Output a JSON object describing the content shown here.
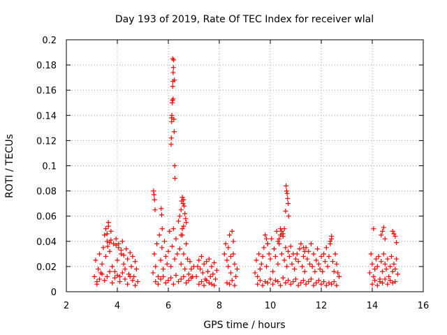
{
  "chart_data": {
    "type": "scatter",
    "title": "Day 193 of 2019, Rate Of TEC Index for receiver wlal",
    "xlabel": "GPS time / hours",
    "ylabel": "ROTI / TECUs",
    "xlim": [
      2,
      16
    ],
    "ylim": [
      0,
      0.2
    ],
    "xticks": [
      2,
      4,
      6,
      8,
      10,
      12,
      14,
      16
    ],
    "xtick_labels": [
      "2",
      "4",
      "6",
      "8",
      "10",
      "12",
      "14",
      "16"
    ],
    "yticks": [
      0,
      0.02,
      0.04,
      0.06,
      0.08,
      0.1,
      0.12,
      0.14,
      0.16,
      0.18,
      0.2
    ],
    "ytick_labels": [
      "0",
      "0.02",
      "0.04",
      "0.06",
      "0.08",
      "0.1",
      "0.12",
      "0.14",
      "0.16",
      "0.18",
      "0.2"
    ],
    "grid": true,
    "marker": "plus",
    "color": "#ff0000",
    "series": [
      {
        "name": "ROTI",
        "x": [
          3.1,
          3.15,
          3.2,
          3.25,
          3.3,
          3.35,
          3.4,
          3.45,
          3.5,
          3.55,
          3.6,
          3.65,
          3.7,
          3.75,
          3.8,
          3.85,
          3.9,
          3.95,
          4.0,
          4.05,
          4.1,
          4.15,
          4.2,
          4.25,
          4.3,
          4.35,
          4.4,
          4.45,
          4.5,
          4.55,
          4.6,
          4.65,
          4.7,
          4.75,
          4.8,
          3.2,
          3.3,
          3.4,
          3.5,
          3.6,
          3.7,
          3.8,
          3.9,
          4.0,
          4.1,
          4.2,
          4.3,
          4.4,
          4.5,
          4.6,
          4.7,
          3.55,
          3.6,
          3.65,
          3.7,
          3.75,
          3.62,
          4.05,
          4.15,
          4.25,
          3.95,
          5.4,
          5.45,
          5.5,
          5.55,
          5.6,
          5.65,
          5.7,
          5.75,
          5.8,
          5.85,
          5.9,
          5.95,
          6.0,
          6.05,
          6.1,
          6.15,
          6.2,
          6.25,
          6.3,
          6.35,
          6.4,
          6.45,
          6.5,
          6.55,
          6.6,
          6.65,
          6.7,
          6.75,
          6.8,
          6.85,
          6.9,
          6.95,
          7.0,
          5.5,
          5.6,
          5.7,
          5.8,
          5.9,
          6.0,
          6.1,
          6.2,
          6.3,
          6.4,
          6.5,
          6.6,
          6.7,
          6.8,
          6.9,
          5.42,
          5.44,
          5.46,
          5.48,
          5.72,
          5.74,
          5.76,
          6.12,
          6.13,
          6.14,
          6.15,
          6.16,
          6.17,
          6.18,
          6.19,
          6.2,
          6.21,
          6.22,
          6.23,
          6.24,
          6.25,
          6.26,
          6.11,
          6.17,
          6.13,
          6.19,
          6.45,
          6.5,
          6.52,
          6.55,
          6.58,
          6.6,
          6.62,
          6.65,
          6.68,
          6.7,
          6.5,
          6.55,
          6.6,
          7.1,
          7.15,
          7.2,
          7.25,
          7.3,
          7.35,
          7.4,
          7.45,
          7.5,
          7.55,
          7.6,
          7.65,
          7.7,
          7.75,
          7.8,
          7.85,
          7.9,
          7.2,
          7.3,
          7.4,
          7.5,
          7.6,
          7.7,
          7.8,
          8.2,
          8.25,
          8.3,
          8.35,
          8.4,
          8.45,
          8.5,
          8.55,
          8.6,
          8.65,
          8.7,
          8.3,
          8.4,
          8.5,
          8.6,
          8.35,
          8.45,
          8.55,
          9.4,
          9.45,
          9.5,
          9.55,
          9.6,
          9.65,
          9.7,
          9.75,
          9.8,
          9.85,
          9.9,
          9.95,
          10.0,
          10.05,
          10.1,
          10.15,
          10.2,
          10.25,
          10.3,
          10.35,
          10.4,
          10.45,
          10.5,
          10.55,
          10.6,
          10.65,
          10.7,
          10.75,
          10.8,
          10.85,
          10.9,
          10.95,
          11.0,
          11.05,
          11.1,
          11.15,
          11.2,
          11.25,
          11.3,
          11.35,
          11.4,
          11.45,
          11.5,
          11.55,
          11.6,
          11.65,
          11.7,
          11.75,
          11.8,
          11.85,
          11.9,
          11.95,
          12.0,
          12.05,
          12.1,
          12.15,
          12.2,
          12.25,
          12.3,
          12.35,
          12.4,
          12.45,
          12.5,
          12.55,
          12.6,
          12.65,
          12.7,
          9.5,
          9.6,
          9.7,
          9.8,
          9.9,
          10.0,
          10.1,
          10.2,
          10.3,
          10.4,
          10.5,
          10.6,
          10.7,
          10.8,
          10.9,
          11.0,
          11.1,
          11.2,
          11.3,
          11.4,
          11.5,
          11.6,
          11.7,
          11.8,
          11.9,
          12.0,
          12.1,
          12.2,
          12.3,
          12.4,
          12.5,
          12.6,
          10.3,
          10.35,
          10.4,
          10.45,
          10.5,
          10.55,
          10.62,
          10.64,
          10.66,
          10.68,
          10.7,
          10.72,
          10.6,
          9.85,
          9.9,
          11.3,
          11.35,
          12.35,
          12.4,
          13.9,
          13.95,
          14.0,
          14.05,
          14.1,
          14.15,
          14.2,
          14.25,
          14.3,
          14.35,
          14.4,
          14.45,
          14.5,
          14.55,
          14.6,
          14.65,
          14.7,
          14.75,
          14.8,
          14.85,
          14.9,
          14.95,
          15.0,
          14.0,
          14.1,
          14.2,
          14.3,
          14.4,
          14.5,
          14.6,
          14.7,
          14.8,
          14.9,
          14.05,
          14.35,
          14.4,
          14.45,
          14.5,
          14.8,
          14.85,
          14.9,
          14.95
        ],
        "y": [
          0.012,
          0.025,
          0.008,
          0.018,
          0.03,
          0.015,
          0.022,
          0.035,
          0.045,
          0.028,
          0.04,
          0.055,
          0.032,
          0.048,
          0.02,
          0.038,
          0.016,
          0.042,
          0.025,
          0.035,
          0.012,
          0.03,
          0.04,
          0.022,
          0.018,
          0.034,
          0.026,
          0.014,
          0.031,
          0.02,
          0.028,
          0.012,
          0.024,
          0.018,
          0.008,
          0.006,
          0.01,
          0.014,
          0.009,
          0.012,
          0.016,
          0.007,
          0.011,
          0.013,
          0.008,
          0.015,
          0.01,
          0.006,
          0.012,
          0.009,
          0.005,
          0.05,
          0.046,
          0.052,
          0.039,
          0.041,
          0.036,
          0.038,
          0.033,
          0.029,
          0.037,
          0.015,
          0.03,
          0.02,
          0.038,
          0.012,
          0.045,
          0.025,
          0.035,
          0.018,
          0.04,
          0.028,
          0.022,
          0.032,
          0.048,
          0.02,
          0.036,
          0.05,
          0.026,
          0.042,
          0.03,
          0.056,
          0.034,
          0.022,
          0.045,
          0.03,
          0.018,
          0.038,
          0.026,
          0.014,
          0.024,
          0.018,
          0.012,
          0.02,
          0.008,
          0.006,
          0.01,
          0.012,
          0.007,
          0.009,
          0.011,
          0.006,
          0.013,
          0.008,
          0.01,
          0.012,
          0.007,
          0.009,
          0.011,
          0.08,
          0.077,
          0.073,
          0.065,
          0.066,
          0.061,
          0.05,
          0.122,
          0.135,
          0.14,
          0.15,
          0.152,
          0.163,
          0.167,
          0.174,
          0.178,
          0.184,
          0.137,
          0.127,
          0.168,
          0.1,
          0.09,
          0.117,
          0.185,
          0.138,
          0.153,
          0.06,
          0.065,
          0.072,
          0.075,
          0.07,
          0.073,
          0.068,
          0.062,
          0.058,
          0.055,
          0.045,
          0.05,
          0.052,
          0.012,
          0.02,
          0.025,
          0.018,
          0.028,
          0.015,
          0.022,
          0.01,
          0.024,
          0.016,
          0.026,
          0.012,
          0.02,
          0.014,
          0.023,
          0.01,
          0.017,
          0.006,
          0.008,
          0.005,
          0.009,
          0.007,
          0.006,
          0.005,
          0.03,
          0.038,
          0.025,
          0.02,
          0.045,
          0.015,
          0.048,
          0.03,
          0.022,
          0.012,
          0.018,
          0.007,
          0.006,
          0.009,
          0.005,
          0.035,
          0.028,
          0.04,
          0.015,
          0.025,
          0.012,
          0.03,
          0.018,
          0.022,
          0.028,
          0.035,
          0.045,
          0.02,
          0.038,
          0.03,
          0.026,
          0.042,
          0.016,
          0.034,
          0.028,
          0.048,
          0.022,
          0.038,
          0.05,
          0.03,
          0.044,
          0.025,
          0.035,
          0.02,
          0.032,
          0.028,
          0.036,
          0.022,
          0.03,
          0.018,
          0.026,
          0.03,
          0.024,
          0.034,
          0.038,
          0.02,
          0.028,
          0.016,
          0.035,
          0.026,
          0.032,
          0.022,
          0.038,
          0.02,
          0.03,
          0.016,
          0.025,
          0.034,
          0.022,
          0.018,
          0.028,
          0.016,
          0.03,
          0.024,
          0.035,
          0.02,
          0.028,
          0.038,
          0.044,
          0.024,
          0.016,
          0.03,
          0.022,
          0.015,
          0.012,
          0.006,
          0.009,
          0.005,
          0.008,
          0.007,
          0.01,
          0.006,
          0.009,
          0.008,
          0.005,
          0.011,
          0.007,
          0.009,
          0.006,
          0.008,
          0.01,
          0.005,
          0.007,
          0.009,
          0.006,
          0.008,
          0.01,
          0.005,
          0.007,
          0.009,
          0.006,
          0.008,
          0.005,
          0.007,
          0.006,
          0.008,
          0.005,
          0.04,
          0.042,
          0.045,
          0.048,
          0.046,
          0.05,
          0.084,
          0.08,
          0.078,
          0.074,
          0.07,
          0.06,
          0.064,
          0.042,
          0.038,
          0.035,
          0.032,
          0.04,
          0.042,
          0.015,
          0.03,
          0.022,
          0.012,
          0.018,
          0.026,
          0.02,
          0.028,
          0.01,
          0.024,
          0.016,
          0.03,
          0.022,
          0.018,
          0.026,
          0.012,
          0.02,
          0.028,
          0.016,
          0.022,
          0.018,
          0.026,
          0.014,
          0.006,
          0.009,
          0.005,
          0.008,
          0.007,
          0.01,
          0.006,
          0.009,
          0.007,
          0.008,
          0.05,
          0.045,
          0.048,
          0.051,
          0.042,
          0.048,
          0.046,
          0.044,
          0.039
        ]
      }
    ]
  }
}
